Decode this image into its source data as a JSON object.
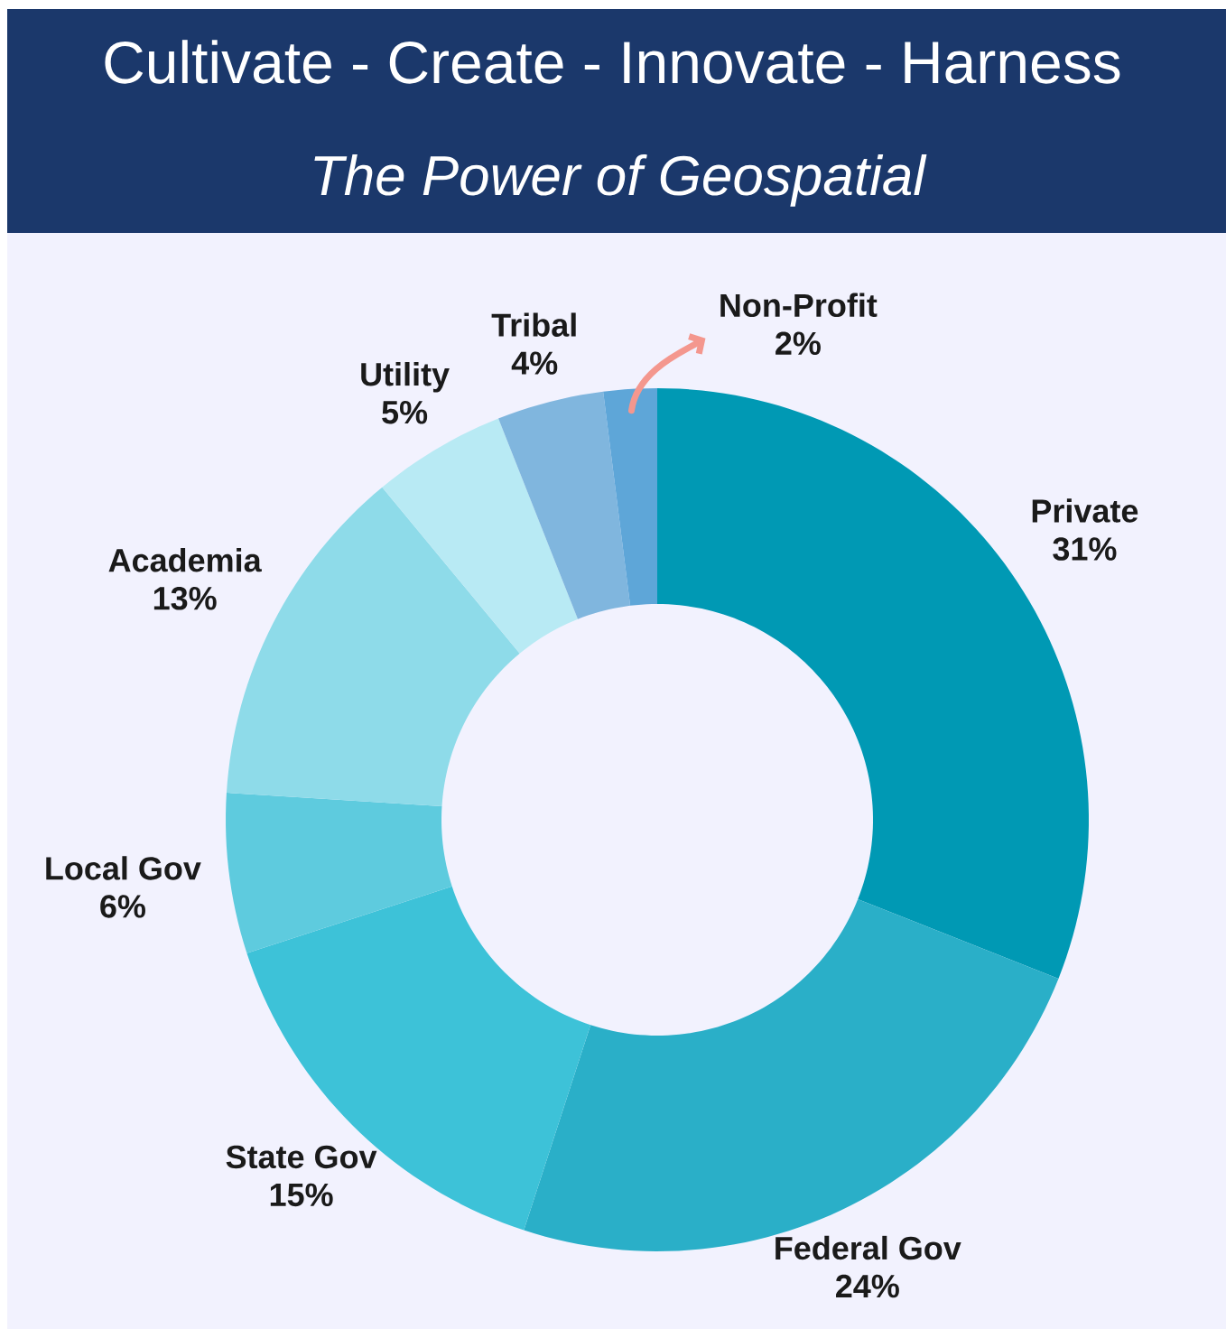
{
  "chart_data": {
    "type": "donut",
    "title": "Cultivate - Create - Innovate - Harness",
    "subtitle": "The Power of Geospatial",
    "categories": [
      "Private",
      "Federal Gov",
      "State Gov",
      "Local Gov",
      "Academia",
      "Utility",
      "Tribal",
      "Non-Profit"
    ],
    "values": [
      31,
      24,
      15,
      6,
      13,
      5,
      4,
      2
    ],
    "value_labels": [
      "31%",
      "24%",
      "15%",
      "6%",
      "13%",
      "5%",
      "4%",
      "2%"
    ],
    "colors": [
      "#0099b4",
      "#2aafc8",
      "#3dc2d8",
      "#5ecbde",
      "#8edbe9",
      "#b8eaf4",
      "#80b6de",
      "#5ea6d8"
    ]
  }
}
